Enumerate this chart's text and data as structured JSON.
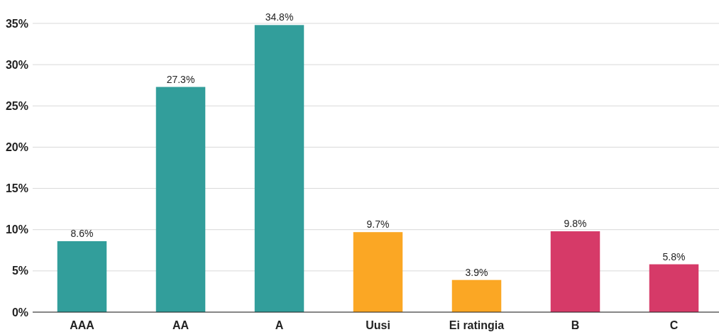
{
  "chart_data": {
    "type": "bar",
    "categories": [
      "AAA",
      "AA",
      "A",
      "Uusi",
      "Ei ratingia",
      "B",
      "C"
    ],
    "values": [
      8.6,
      27.3,
      34.8,
      9.7,
      3.9,
      9.8,
      5.8
    ],
    "colors": [
      "#329e9b",
      "#329e9b",
      "#329e9b",
      "#fba724",
      "#fba724",
      "#d63a68",
      "#d63a68"
    ],
    "ylim": [
      0,
      35
    ],
    "yticks": [
      {
        "value": 0,
        "label": "0%"
      },
      {
        "value": 5,
        "label": "5%"
      },
      {
        "value": 10,
        "label": "10%"
      },
      {
        "value": 15,
        "label": "15%"
      },
      {
        "value": 20,
        "label": "20%"
      },
      {
        "value": 25,
        "label": "25%"
      },
      {
        "value": 30,
        "label": "30%"
      },
      {
        "value": 35,
        "label": "35%"
      }
    ],
    "value_labels": [
      "8.6%",
      "27.3%",
      "34.8%",
      "9.7%",
      "3.9%",
      "9.8%",
      "5.8%"
    ],
    "grid": "y"
  }
}
